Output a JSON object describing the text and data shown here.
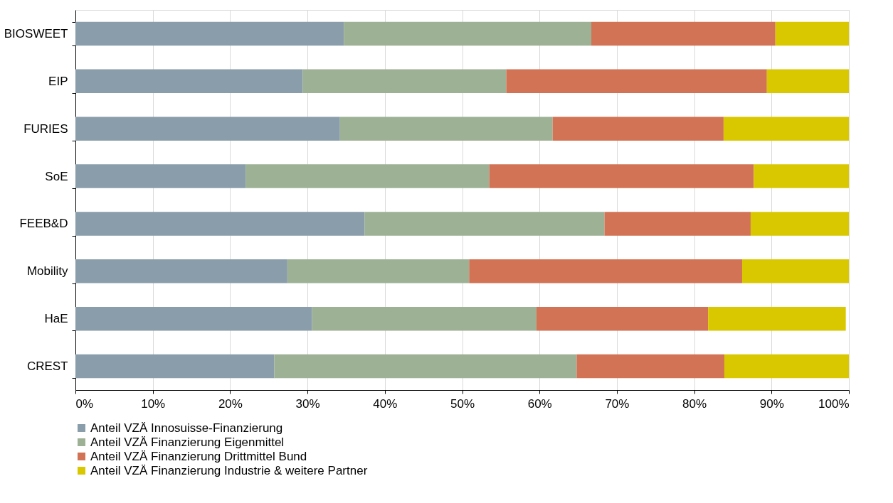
{
  "chart_data": {
    "type": "bar",
    "orientation": "horizontal",
    "stacked": true,
    "categories": [
      "BIOSWEET",
      "EIP",
      "FURIES",
      "SoE",
      "FEEB&D",
      "Mobility",
      "HaE",
      "CREST"
    ],
    "series": [
      {
        "name": "Anteil VZÄ Innosuisse-Finanzierung",
        "color": "#8a9daa",
        "values": [
          34.7,
          29.4,
          34.2,
          22.0,
          37.4,
          27.4,
          30.6,
          25.7
        ]
      },
      {
        "name": "Anteil VZÄ Finanzierung Eigenmittel",
        "color": "#9db195",
        "values": [
          32.0,
          26.3,
          27.5,
          31.5,
          31.0,
          23.5,
          29.0,
          39.1
        ]
      },
      {
        "name": "Anteil VZÄ Finanzierung Drittmittel Bund",
        "color": "#d27355",
        "values": [
          23.8,
          33.7,
          22.1,
          34.2,
          18.9,
          35.3,
          22.2,
          19.1
        ]
      },
      {
        "name": "Anteil VZÄ Finanzierung Industrie & weitere Partner",
        "color": "#d9c800",
        "values": [
          9.5,
          10.6,
          16.2,
          12.3,
          12.7,
          13.8,
          17.8,
          16.1
        ]
      }
    ],
    "xlim": [
      0,
      100
    ],
    "xticks": [
      {
        "value": 0,
        "label": "0%"
      },
      {
        "value": 10,
        "label": "10%"
      },
      {
        "value": 20,
        "label": "20%"
      },
      {
        "value": 30,
        "label": "30%"
      },
      {
        "value": 40,
        "label": "40%"
      },
      {
        "value": 50,
        "label": "50%"
      },
      {
        "value": 60,
        "label": "60%"
      },
      {
        "value": 70,
        "label": "70%"
      },
      {
        "value": 80,
        "label": "80%"
      },
      {
        "value": 90,
        "label": "90%"
      },
      {
        "value": 100,
        "label": "100%"
      }
    ],
    "grid": "x",
    "legend": "bottom"
  }
}
